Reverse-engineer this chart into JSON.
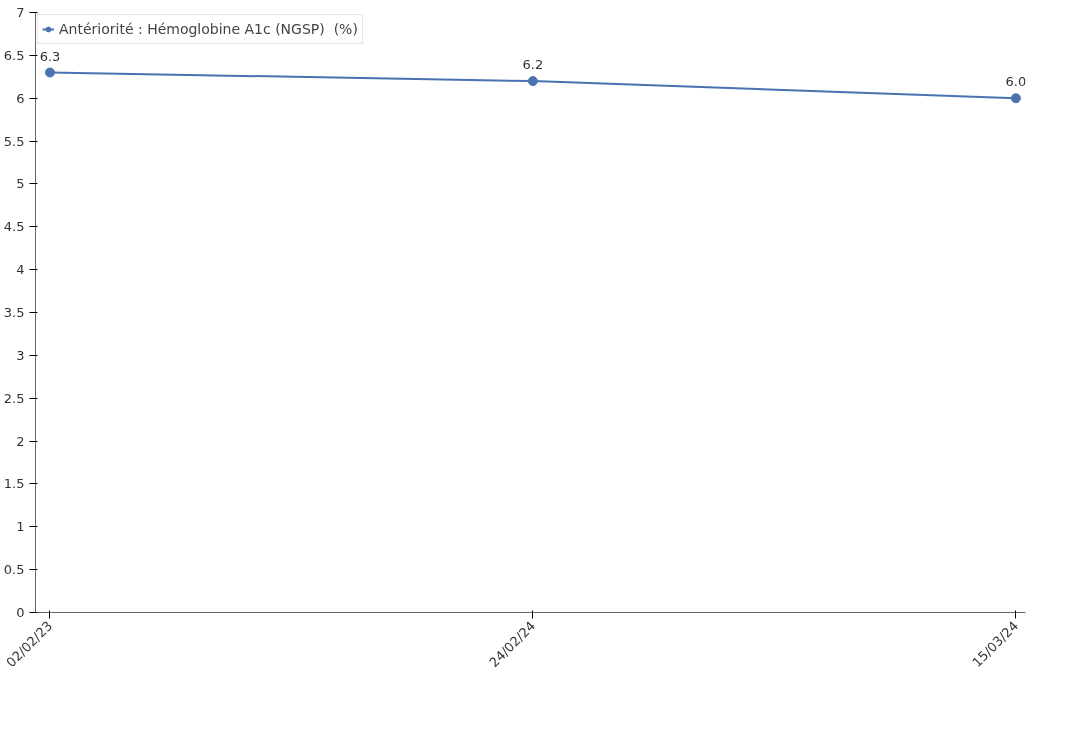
{
  "chart_data": {
    "type": "line",
    "categories": [
      "02/02/23",
      "24/02/24",
      "15/03/24"
    ],
    "series": [
      {
        "name": "Antériorité : Hémoglobine A1c (NGSP)  (%)",
        "color": "#4a72b0",
        "values": [
          6.3,
          6.2,
          6.0
        ],
        "value_labels": [
          "6.3",
          "6.2",
          "6.0"
        ]
      }
    ],
    "ylim": [
      0,
      7
    ],
    "yticks": [
      0,
      0.5,
      1,
      1.5,
      2,
      2.5,
      3,
      3.5,
      4,
      4.5,
      5,
      5.5,
      6,
      6.5,
      7
    ],
    "grid": false,
    "legend": "top left",
    "marker": "circle",
    "line_style": "solid"
  }
}
